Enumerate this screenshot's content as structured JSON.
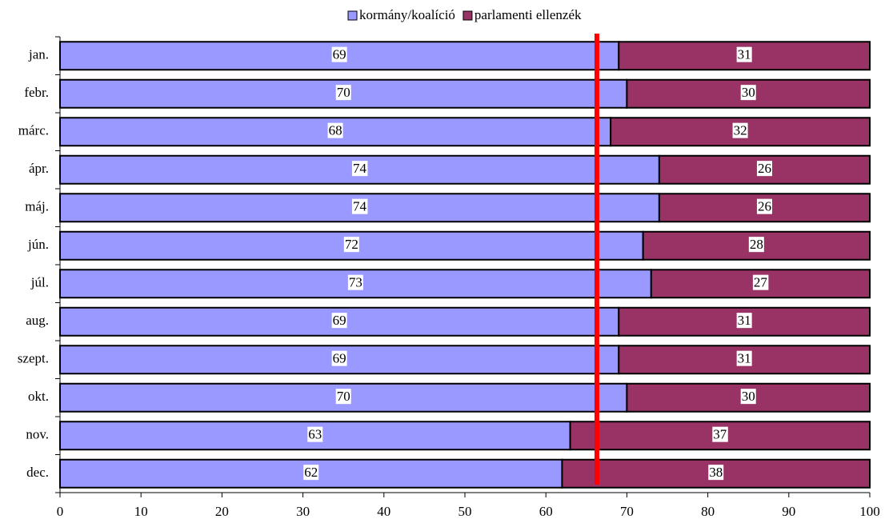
{
  "chart_data": {
    "type": "stacked_barh",
    "categories": [
      "jan.",
      "febr.",
      "márc.",
      "ápr.",
      "máj.",
      "jún.",
      "júl.",
      "aug.",
      "szept.",
      "okt.",
      "nov.",
      "dec."
    ],
    "series": [
      {
        "name": "kormány/koalíció",
        "color": "#9999ff",
        "values": [
          69,
          70,
          68,
          74,
          74,
          72,
          73,
          69,
          69,
          70,
          63,
          62
        ]
      },
      {
        "name": "parlamenti ellenzék",
        "color": "#993366",
        "values": [
          31,
          30,
          32,
          26,
          26,
          28,
          27,
          31,
          31,
          30,
          37,
          38
        ]
      }
    ],
    "xlim": [
      0,
      100
    ],
    "xticks": [
      0,
      10,
      20,
      30,
      40,
      50,
      60,
      70,
      80,
      90,
      100
    ],
    "reference_line": {
      "value": 66.3,
      "color": "#ff0000"
    },
    "legend": "top"
  }
}
